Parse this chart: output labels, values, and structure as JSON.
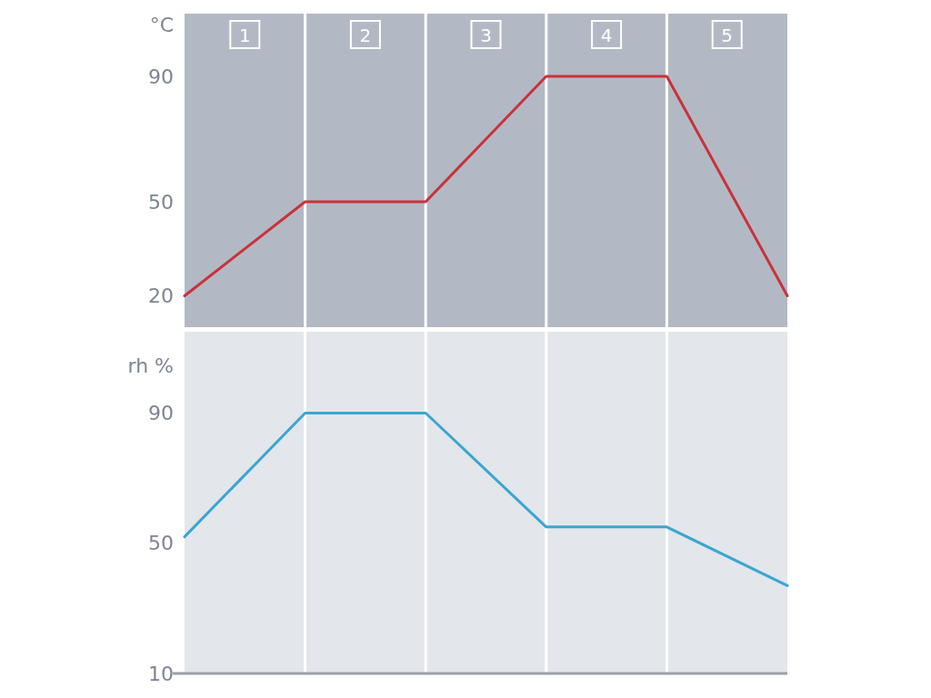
{
  "chart_data": [
    {
      "type": "line",
      "ylabel": "°C",
      "categories": [
        null,
        null,
        null,
        null,
        null,
        null
      ],
      "ylim": [
        10,
        110
      ],
      "yticks": [
        20,
        50,
        90
      ],
      "tick_labels": "y",
      "grid": "x",
      "series": [
        {
          "color": "#c8323c",
          "values": [
            20,
            50,
            50,
            90,
            90,
            20
          ]
        }
      ],
      "annotations": [
        "1",
        "2",
        "3",
        "4",
        "5"
      ]
    },
    {
      "type": "line",
      "ylabel": "rh %",
      "categories": [
        null,
        null,
        null,
        null,
        null,
        null
      ],
      "ylim": [
        10,
        115
      ],
      "yticks": [
        10,
        50,
        90
      ],
      "tick_labels": "y",
      "grid": "x",
      "series": [
        {
          "color": "#3aa6d0",
          "values": [
            52,
            90,
            90,
            55,
            55,
            37
          ]
        }
      ]
    }
  ]
}
